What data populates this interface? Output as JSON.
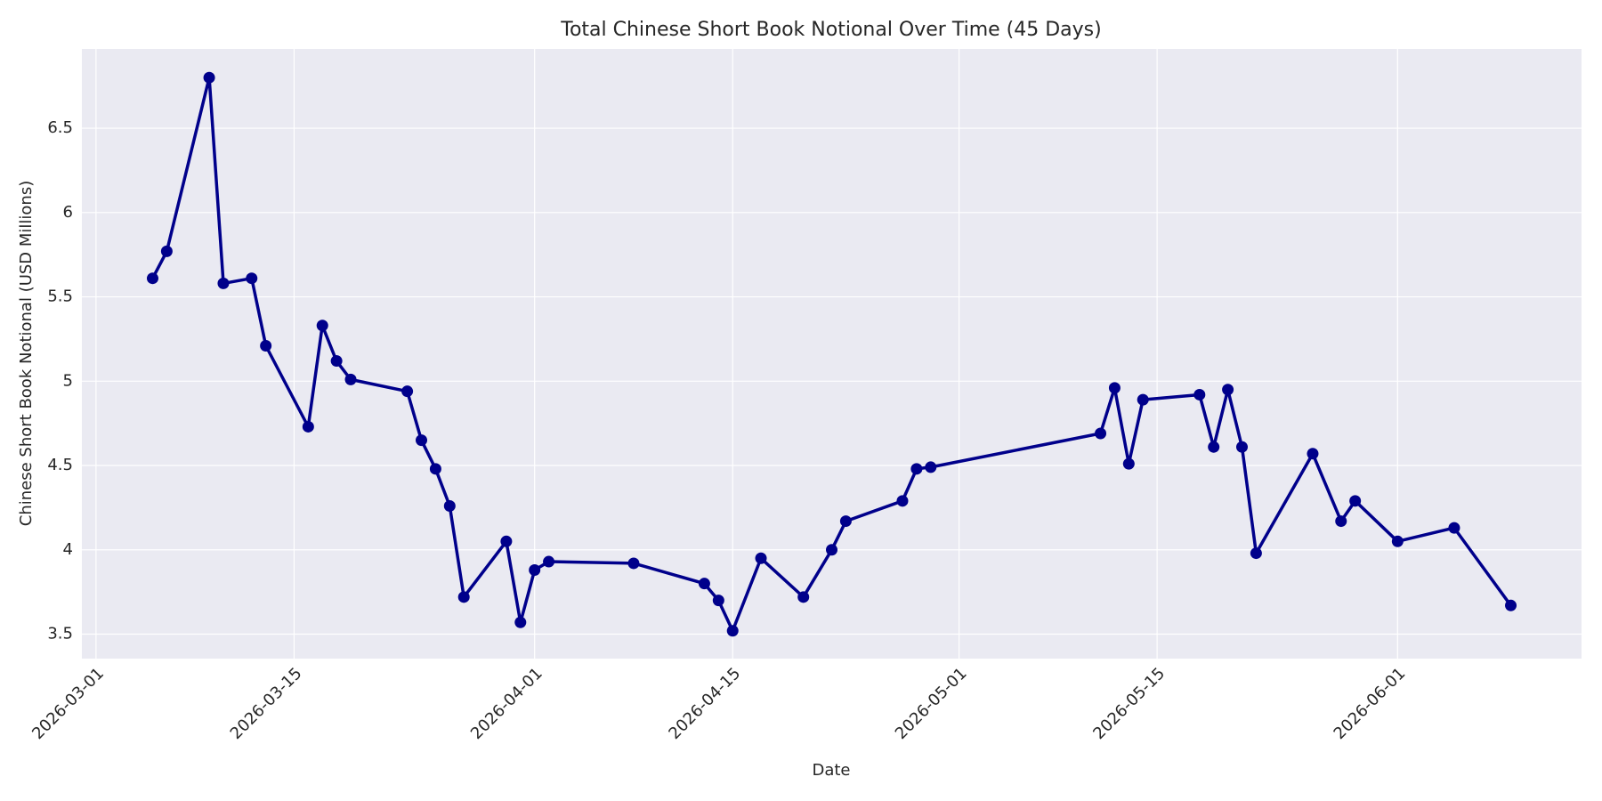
{
  "chart_data": {
    "type": "line",
    "title": "Total Chinese Short Book Notional Over Time (45 Days)",
    "x_label": "Date",
    "y_label": "Chinese Short Book Notional (USD Millions)",
    "x": [
      "2026-03-05",
      "2026-03-06",
      "2026-03-09",
      "2026-03-10",
      "2026-03-12",
      "2026-03-13",
      "2026-03-16",
      "2026-03-17",
      "2026-03-18",
      "2026-03-19",
      "2026-03-23",
      "2026-03-24",
      "2026-03-25",
      "2026-03-26",
      "2026-03-27",
      "2026-03-30",
      "2026-03-31",
      "2026-04-01",
      "2026-04-02",
      "2026-04-08",
      "2026-04-13",
      "2026-04-14",
      "2026-04-15",
      "2026-04-17",
      "2026-04-20",
      "2026-04-22",
      "2026-04-23",
      "2026-04-27",
      "2026-04-28",
      "2026-04-29",
      "2026-05-11",
      "2026-05-12",
      "2026-05-13",
      "2026-05-14",
      "2026-05-18",
      "2026-05-19",
      "2026-05-20",
      "2026-05-21",
      "2026-05-22",
      "2026-05-26",
      "2026-05-28",
      "2026-05-29",
      "2026-06-01",
      "2026-06-05",
      "2026-06-09"
    ],
    "values": [
      5.61,
      5.77,
      6.8,
      5.58,
      5.61,
      5.21,
      4.73,
      5.33,
      5.12,
      5.01,
      4.94,
      4.65,
      4.48,
      4.26,
      3.72,
      4.05,
      3.57,
      3.88,
      3.93,
      3.92,
      3.8,
      3.7,
      3.52,
      3.95,
      3.72,
      4.0,
      4.17,
      4.29,
      4.48,
      4.49,
      4.69,
      4.96,
      4.51,
      4.89,
      4.92,
      4.61,
      4.95,
      4.61,
      3.98,
      4.57,
      4.17,
      4.29,
      4.05,
      4.13,
      3.67
    ],
    "color": "#00008b",
    "xlim": [
      "2026-02-28",
      "2026-06-14"
    ],
    "xticks": [
      "2026-03-01",
      "2026-03-15",
      "2026-04-01",
      "2026-04-15",
      "2026-05-01",
      "2026-05-15",
      "2026-06-01"
    ],
    "ylim": [
      3.355,
      6.97
    ],
    "yticks": [
      3.5,
      4.0,
      4.5,
      5.0,
      5.5,
      6.0,
      6.5
    ],
    "grid": true
  }
}
